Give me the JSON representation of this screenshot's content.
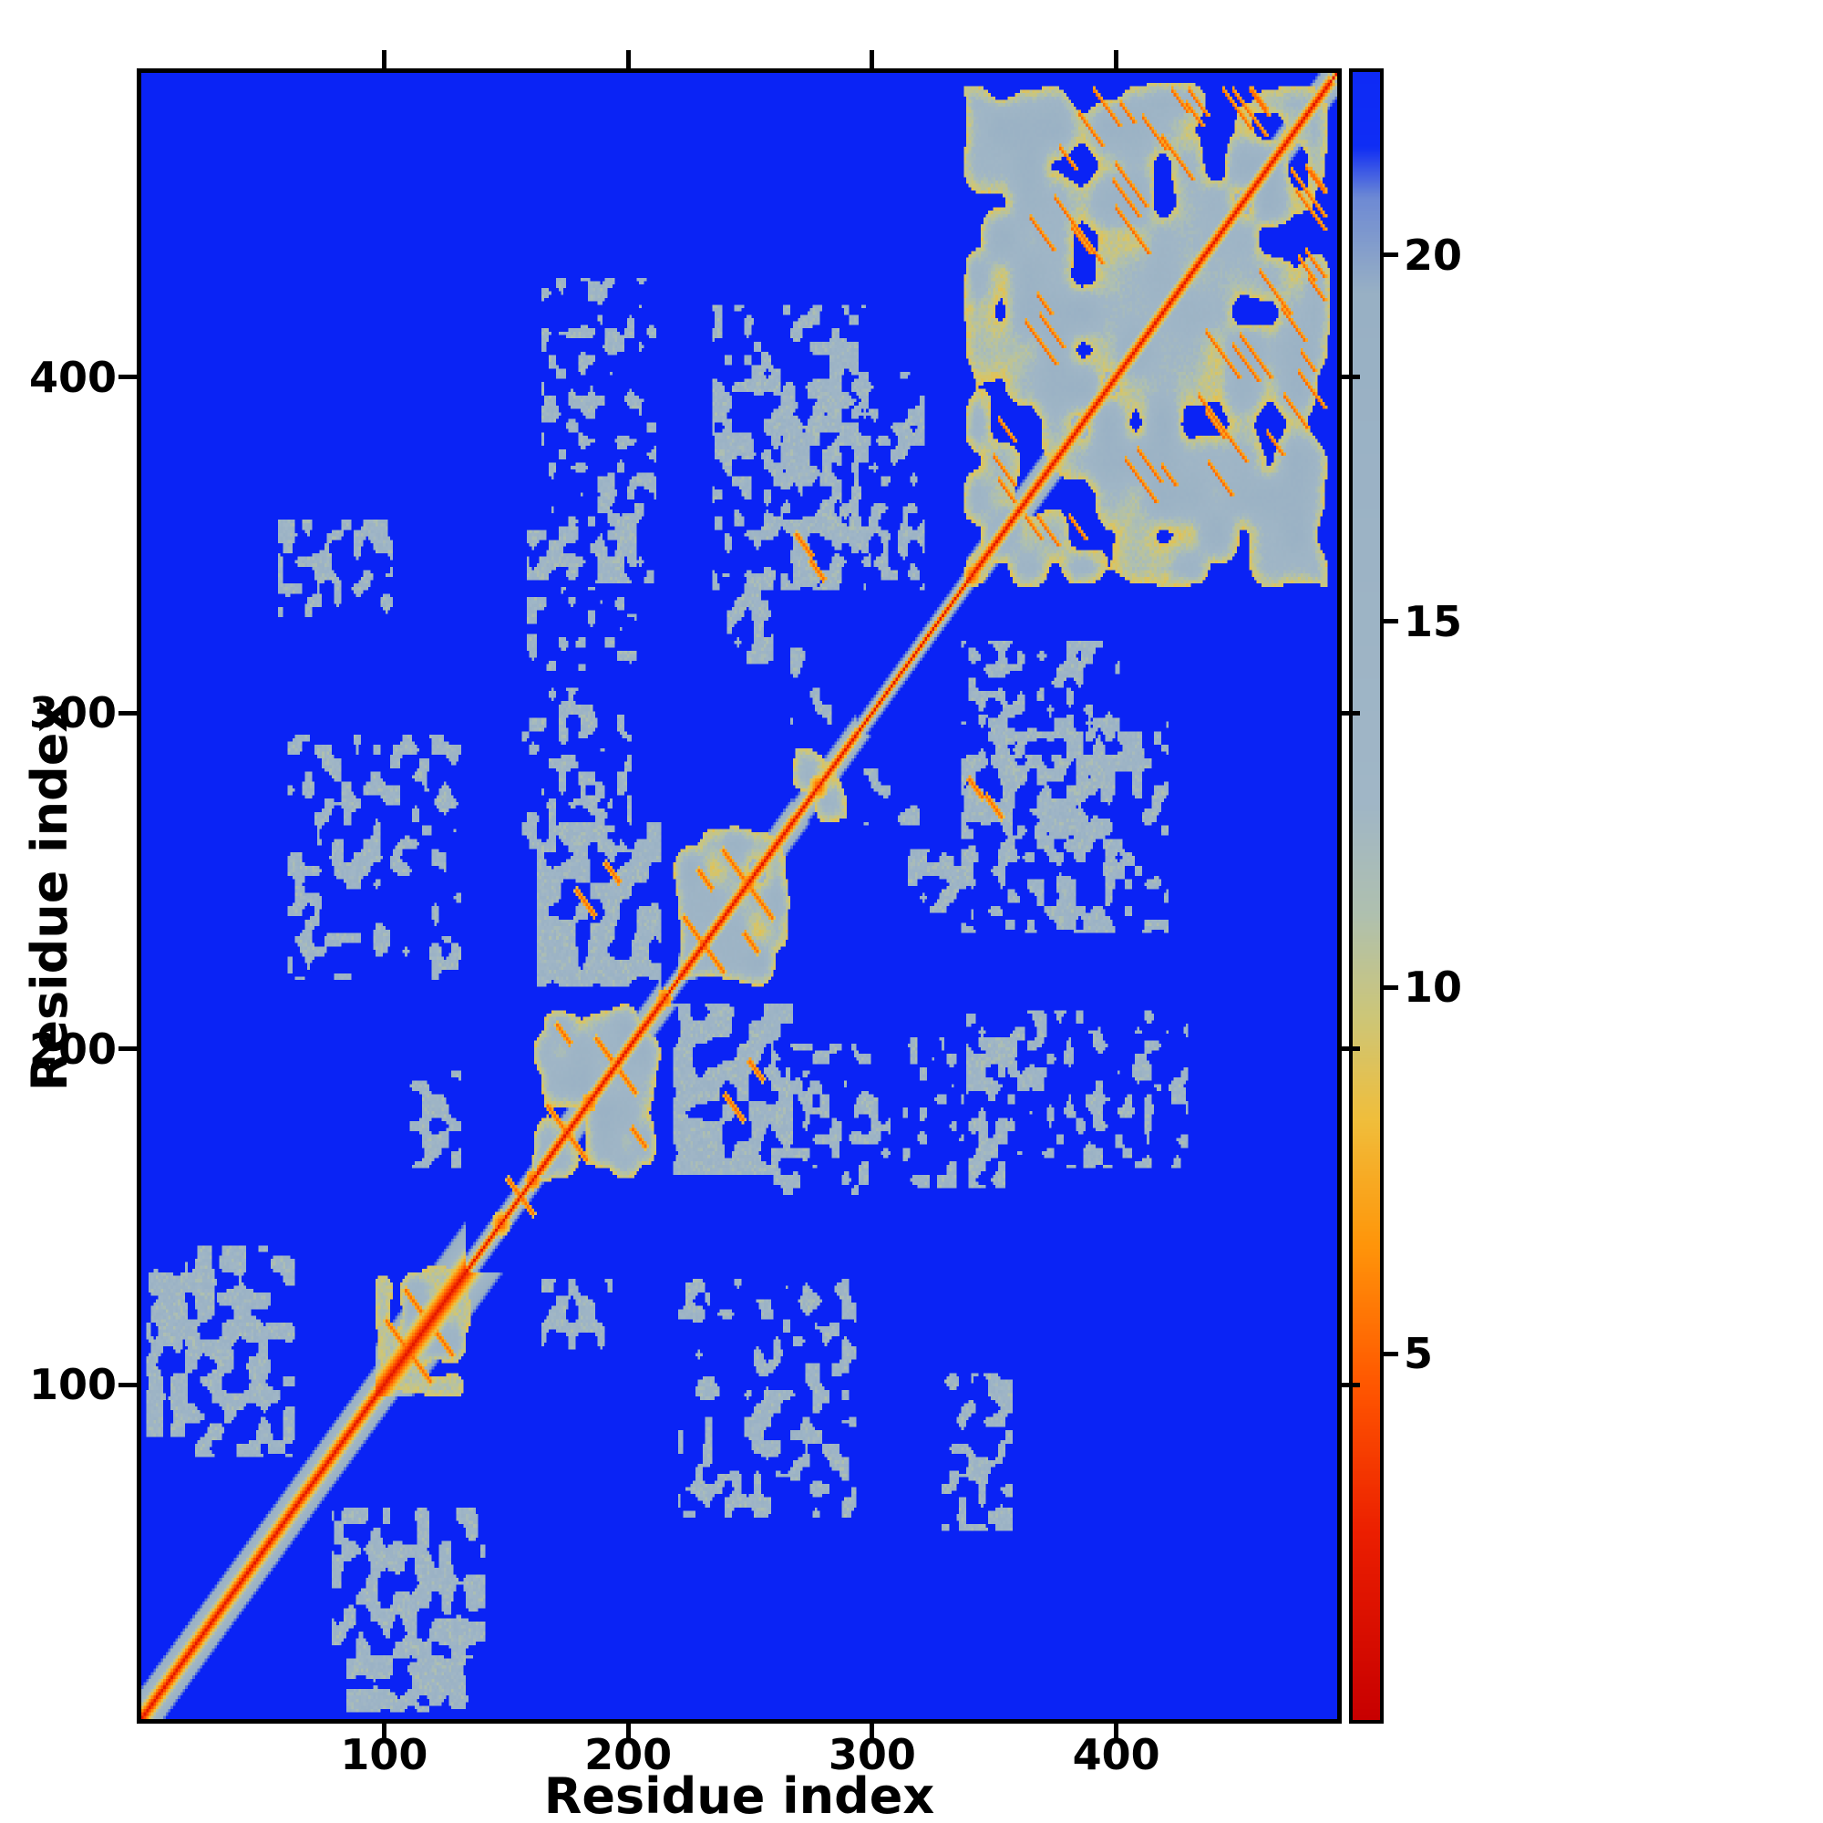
{
  "figure": {
    "background": "#ffffff",
    "frame_color": "#000000"
  },
  "chart_data": {
    "type": "heatmap",
    "title": "",
    "xlabel": "Residue index",
    "ylabel": "Residue index",
    "n_residues": 490,
    "x_range": [
      1,
      490
    ],
    "y_range": [
      1,
      490
    ],
    "x_ticks": [
      100,
      200,
      300,
      400
    ],
    "y_ticks": [
      100,
      200,
      300,
      400
    ],
    "grid": false,
    "legend": "none",
    "colorbar": {
      "position": "right",
      "vmin": 0,
      "vmax": 22.5,
      "ticks": [
        5,
        10,
        15,
        20
      ]
    },
    "background_value": 25,
    "colors": {
      "far_blue": "#0a23f5",
      "mid_gray": "#98b0c4",
      "fringe_khaki": "#cdc678",
      "near_orange": "#ff9606",
      "contact_red": "#d40000"
    },
    "colormap_stops": [
      [
        0,
        200,
        0,
        0
      ],
      [
        2.5,
        235,
        30,
        0
      ],
      [
        4.5,
        255,
        85,
        0
      ],
      [
        6.5,
        255,
        150,
        10
      ],
      [
        8.2,
        240,
        190,
        60
      ],
      [
        9.6,
        205,
        198,
        120
      ],
      [
        11,
        175,
        192,
        175
      ],
      [
        12.5,
        160,
        182,
        198
      ],
      [
        19.5,
        152,
        176,
        196
      ],
      [
        20.8,
        110,
        138,
        212
      ],
      [
        21.5,
        15,
        45,
        245
      ],
      [
        25,
        10,
        35,
        245
      ]
    ],
    "features": {
      "band_segments": [
        {
          "start": 0,
          "end": 96,
          "hw": 9
        },
        {
          "start": 96,
          "end": 132,
          "hw": 15
        },
        {
          "start": 132,
          "end": 162,
          "hw": 5
        },
        {
          "start": 162,
          "end": 212,
          "hw": 7
        },
        {
          "start": 212,
          "end": 220,
          "hw": 4
        },
        {
          "start": 220,
          "end": 266,
          "hw": 7
        },
        {
          "start": 266,
          "end": 292,
          "hw": 6
        },
        {
          "start": 292,
          "end": 338,
          "hw": 4
        },
        {
          "start": 338,
          "end": 486,
          "hw": 7
        },
        {
          "start": 486,
          "end": 489,
          "hw": 3
        }
      ],
      "domains": [
        {
          "start": 96,
          "end": 134,
          "holeThresh": 0.22,
          "scale": 8,
          "seed": 51
        },
        {
          "start": 160,
          "end": 212,
          "holeThresh": 0.3,
          "scale": 9,
          "seed": 11
        },
        {
          "start": 218,
          "end": 266,
          "holeThresh": 0.3,
          "scale": 9,
          "seed": 23
        },
        {
          "start": 266,
          "end": 290,
          "holeThresh": 0.34,
          "scale": 7,
          "seed": 67
        },
        {
          "start": 336,
          "end": 486,
          "holeThresh": 0.26,
          "scale": 11,
          "seed": 37
        }
      ],
      "couplings": [
        {
          "x0": 162,
          "x1": 212,
          "y0": 218,
          "y1": 266,
          "thr": 0.4,
          "scale": 6,
          "seed": 81
        },
        {
          "x0": 262,
          "x1": 286,
          "y0": 336,
          "y1": 398,
          "thr": 0.5,
          "scale": 5,
          "seed": 83
        },
        {
          "x0": 164,
          "x1": 210,
          "y0": 338,
          "y1": 428,
          "thr": 0.62,
          "scale": 4,
          "seed": 85
        },
        {
          "x0": 234,
          "x1": 298,
          "y0": 336,
          "y1": 420,
          "thr": 0.6,
          "scale": 4,
          "seed": 87
        },
        {
          "x0": 2,
          "x1": 18,
          "y0": 84,
          "y1": 134,
          "thr": 0.46,
          "scale": 5,
          "seed": 89
        },
        {
          "x0": 18,
          "x1": 62,
          "y0": 78,
          "y1": 140,
          "thr": 0.56,
          "scale": 5,
          "seed": 91
        },
        {
          "x0": 56,
          "x1": 102,
          "y0": 328,
          "y1": 356,
          "thr": 0.63,
          "scale": 4,
          "seed": 93
        },
        {
          "x0": 156,
          "x1": 200,
          "y0": 258,
          "y1": 306,
          "thr": 0.62,
          "scale": 4,
          "seed": 95
        },
        {
          "x0": 158,
          "x1": 202,
          "y0": 312,
          "y1": 354,
          "thr": 0.63,
          "scale": 4,
          "seed": 97
        },
        {
          "x0": 110,
          "x1": 130,
          "y0": 164,
          "y1": 192,
          "thr": 0.6,
          "scale": 4,
          "seed": 99
        },
        {
          "x0": 60,
          "x1": 130,
          "y0": 220,
          "y1": 292,
          "thr": 0.66,
          "scale": 4,
          "seed": 101
        },
        {
          "x0": 290,
          "x1": 320,
          "y0": 336,
          "y1": 400,
          "thr": 0.62,
          "scale": 4,
          "seed": 103
        },
        {
          "x0": 240,
          "x1": 258,
          "y0": 314,
          "y1": 340,
          "thr": 0.58,
          "scale": 4,
          "seed": 105
        },
        {
          "x0": 266,
          "x1": 282,
          "y0": 296,
          "y1": 318,
          "thr": 0.56,
          "scale": 4,
          "seed": 107
        }
      ],
      "orange_streaks": [
        {
          "i": 100,
          "j": 118,
          "len": 8
        },
        {
          "i": 108,
          "j": 127,
          "len": 7
        },
        {
          "i": 166,
          "j": 182,
          "len": 8
        },
        {
          "i": 186,
          "j": 202,
          "len": 7
        },
        {
          "i": 170,
          "j": 206,
          "len": 6
        },
        {
          "i": 222,
          "j": 238,
          "len": 8
        },
        {
          "i": 238,
          "j": 258,
          "len": 9
        },
        {
          "i": 228,
          "j": 252,
          "len": 6
        },
        {
          "i": 178,
          "j": 246,
          "len": 8
        },
        {
          "i": 190,
          "j": 254,
          "len": 6
        },
        {
          "i": 268,
          "j": 352,
          "len": 7
        },
        {
          "i": 274,
          "j": 344,
          "len": 6
        },
        {
          "i": 150,
          "j": 160,
          "len": 5
        }
      ],
      "streak_gen": {
        "seed": 5,
        "count": 26,
        "start": 342,
        "end": 476,
        "minOff": 10,
        "maxOff": 112
      },
      "diag_knots": [
        {
          "r": 108,
          "rad": 3
        },
        {
          "r": 122,
          "rad": 3
        },
        {
          "r": 147,
          "rad": 4
        },
        {
          "r": 160,
          "rad": 3
        },
        {
          "r": 183,
          "rad": 3
        },
        {
          "r": 214,
          "rad": 3
        },
        {
          "r": 248,
          "rad": 3
        },
        {
          "r": 277,
          "rad": 4
        },
        {
          "r": 340,
          "rad": 3
        }
      ]
    }
  }
}
